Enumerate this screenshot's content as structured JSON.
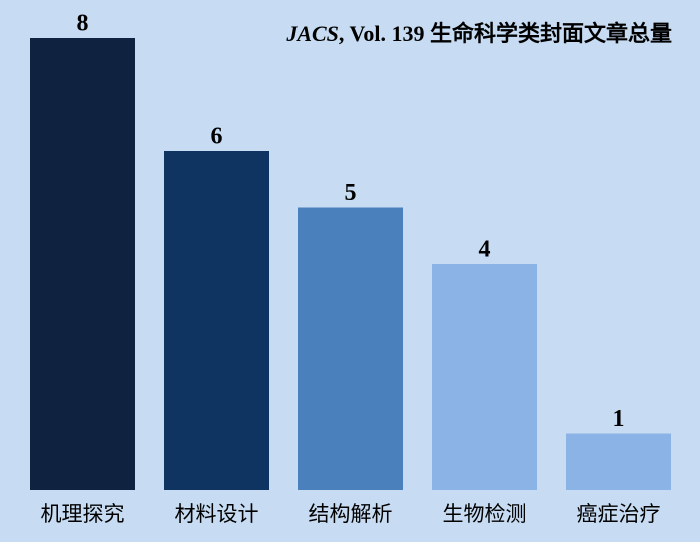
{
  "chart_data": {
    "type": "bar",
    "title": [
      "JACS",
      ",  Vol. 139 生命科学类封面文章总量"
    ],
    "categories": [
      "机理探究",
      "材料设计",
      "结构解析",
      "生物检测",
      "癌症治疗"
    ],
    "values": [
      8,
      6,
      5,
      4,
      1
    ],
    "colors": [
      "#0f2340",
      "#0f3462",
      "#4a80bc",
      "#8bb3e5",
      "#8bb3e5"
    ]
  }
}
